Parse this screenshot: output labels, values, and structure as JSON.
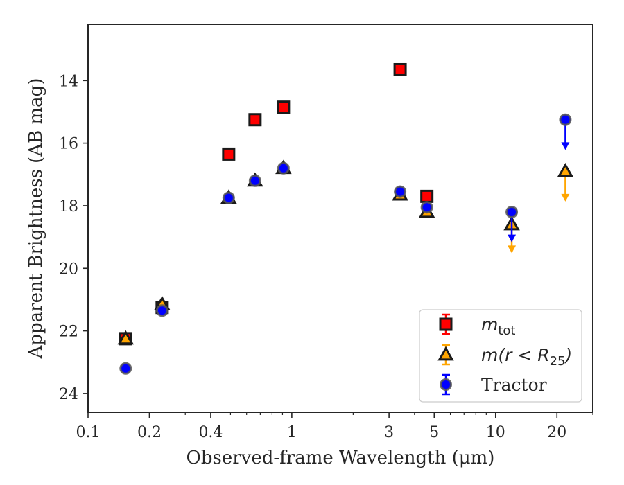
{
  "chart_data": {
    "type": "scatter",
    "xlabel": "Observed-frame Wavelength (μm)",
    "ylabel": "Apparent Brightness (AB mag)",
    "x_scale": "log",
    "xlim": [
      0.1,
      30
    ],
    "ylim": [
      24.6,
      12.2
    ],
    "y_inverted": true,
    "x_major_ticks": [
      0.1,
      0.2,
      0.4,
      1,
      3,
      5,
      10,
      20
    ],
    "x_tick_labels": [
      "0.1",
      "0.2",
      "0.4",
      "1",
      "3",
      "5",
      "10",
      "20"
    ],
    "y_major_ticks": [
      14,
      16,
      18,
      20,
      22,
      24
    ],
    "y_tick_labels": [
      "14",
      "16",
      "18",
      "20",
      "22",
      "24"
    ],
    "grid": false,
    "legend_position": "lower-right",
    "series": [
      {
        "name": "m_tot",
        "legend_label": "m",
        "legend_subscript": "tot",
        "marker": "square",
        "color": "#ff0000",
        "edge_color": "#1a1a1a",
        "points": [
          {
            "x": 0.153,
            "y": 22.25
          },
          {
            "x": 0.231,
            "y": 21.25
          },
          {
            "x": 0.49,
            "y": 16.35
          },
          {
            "x": 0.66,
            "y": 15.25
          },
          {
            "x": 0.91,
            "y": 14.85
          },
          {
            "x": 3.4,
            "y": 13.65
          },
          {
            "x": 4.6,
            "y": 17.7
          }
        ]
      },
      {
        "name": "m(r<R_25)",
        "legend_label": "m(r < R",
        "legend_subscript": "25",
        "legend_suffix": ")",
        "marker": "triangle",
        "color": "#ffa500",
        "edge_color": "#1a1a1a",
        "points": [
          {
            "x": 0.153,
            "y": 22.25
          },
          {
            "x": 0.231,
            "y": 21.15
          },
          {
            "x": 0.49,
            "y": 17.75
          },
          {
            "x": 0.66,
            "y": 17.2
          },
          {
            "x": 0.91,
            "y": 16.8
          },
          {
            "x": 3.4,
            "y": 17.65
          },
          {
            "x": 4.6,
            "y": 18.2
          },
          {
            "x": 12.0,
            "y": 18.6,
            "upper_limit_to": 19.45
          },
          {
            "x": 22.0,
            "y": 16.9,
            "upper_limit_to": 17.8
          }
        ]
      },
      {
        "name": "Tractor",
        "legend_label": "Tractor",
        "marker": "circle",
        "color": "#0000ff",
        "edge_color": "#555555",
        "points": [
          {
            "x": 0.153,
            "y": 23.2
          },
          {
            "x": 0.231,
            "y": 21.35
          },
          {
            "x": 0.49,
            "y": 17.75
          },
          {
            "x": 0.66,
            "y": 17.2
          },
          {
            "x": 0.91,
            "y": 16.8
          },
          {
            "x": 3.4,
            "y": 17.55
          },
          {
            "x": 4.6,
            "y": 18.05
          },
          {
            "x": 12.0,
            "y": 18.2,
            "upper_limit_to": 19.1
          },
          {
            "x": 22.0,
            "y": 15.25,
            "upper_limit_to": 16.15
          }
        ]
      }
    ]
  }
}
